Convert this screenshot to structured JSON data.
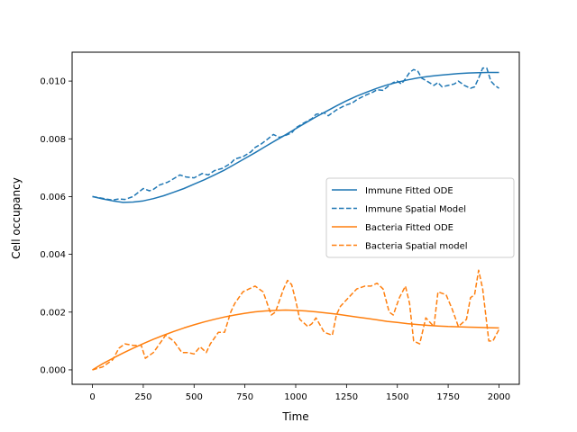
{
  "chart_data": {
    "type": "line",
    "title": "",
    "xlabel": "Time",
    "ylabel": "Cell occupancy",
    "xlim": [
      -100,
      2100
    ],
    "ylim": [
      -0.0005,
      0.011
    ],
    "xticks": [
      0,
      250,
      500,
      750,
      1000,
      1250,
      1500,
      1750,
      2000
    ],
    "xtick_labels": [
      "0",
      "250",
      "500",
      "750",
      "1000",
      "1250",
      "1500",
      "1750",
      "2000"
    ],
    "yticks": [
      0.0,
      0.002,
      0.004,
      0.006,
      0.008,
      0.01
    ],
    "ytick_labels": [
      "0.000",
      "0.002",
      "0.004",
      "0.006",
      "0.008",
      "0.010"
    ],
    "grid": false,
    "legend_position": "center-right",
    "series": [
      {
        "name": "Immune Fitted ODE",
        "color": "#1f77b4",
        "style": "solid",
        "x": [
          0,
          50,
          100,
          150,
          200,
          250,
          300,
          350,
          400,
          450,
          500,
          550,
          600,
          650,
          700,
          750,
          800,
          850,
          900,
          950,
          1000,
          1050,
          1100,
          1150,
          1200,
          1250,
          1300,
          1350,
          1400,
          1450,
          1500,
          1550,
          1600,
          1650,
          1700,
          1750,
          1800,
          1850,
          1900,
          1950,
          2000
        ],
        "y": [
          0.006,
          0.00592,
          0.00585,
          0.0058,
          0.00581,
          0.00585,
          0.00593,
          0.00603,
          0.00615,
          0.00628,
          0.00643,
          0.00658,
          0.00675,
          0.00692,
          0.00712,
          0.00732,
          0.00752,
          0.00773,
          0.00794,
          0.00814,
          0.00835,
          0.00856,
          0.00876,
          0.00895,
          0.00914,
          0.00932,
          0.00948,
          0.00962,
          0.00975,
          0.00987,
          0.00996,
          0.01004,
          0.01011,
          0.01016,
          0.0102,
          0.01023,
          0.01026,
          0.01028,
          0.01029,
          0.0103,
          0.0103
        ]
      },
      {
        "name": "Immune Spatial Model",
        "color": "#1f77b4",
        "style": "dashed",
        "x": [
          0,
          40,
          80,
          100,
          130,
          160,
          200,
          250,
          280,
          300,
          330,
          370,
          400,
          430,
          460,
          500,
          540,
          570,
          600,
          640,
          680,
          700,
          740,
          780,
          800,
          830,
          860,
          890,
          920,
          950,
          980,
          1000,
          1040,
          1080,
          1100,
          1140,
          1160,
          1200,
          1240,
          1280,
          1300,
          1340,
          1380,
          1400,
          1430,
          1460,
          1480,
          1500,
          1520,
          1540,
          1560,
          1580,
          1600,
          1620,
          1650,
          1680,
          1700,
          1720,
          1750,
          1780,
          1800,
          1830,
          1860,
          1880,
          1900,
          1920,
          1940,
          1960,
          1980,
          2000
        ],
        "y": [
          0.006,
          0.00595,
          0.0059,
          0.00588,
          0.00592,
          0.0059,
          0.006,
          0.00628,
          0.0062,
          0.00625,
          0.0064,
          0.0065,
          0.00662,
          0.00675,
          0.00668,
          0.00665,
          0.0068,
          0.00675,
          0.0069,
          0.00698,
          0.00715,
          0.0073,
          0.00738,
          0.00755,
          0.0077,
          0.00782,
          0.00798,
          0.00815,
          0.00805,
          0.00812,
          0.0082,
          0.00838,
          0.00855,
          0.0087,
          0.00885,
          0.0089,
          0.0088,
          0.009,
          0.00915,
          0.00925,
          0.00935,
          0.0095,
          0.00962,
          0.0097,
          0.00968,
          0.00985,
          0.00995,
          0.01,
          0.0099,
          0.01008,
          0.0103,
          0.0104,
          0.01035,
          0.0101,
          0.00998,
          0.00985,
          0.00995,
          0.0098,
          0.00985,
          0.0099,
          0.01,
          0.00985,
          0.00975,
          0.0098,
          0.0101,
          0.01045,
          0.01045,
          0.01,
          0.00985,
          0.00975
        ]
      },
      {
        "name": "Bacteria Fitted ODE",
        "color": "#ff7f0e",
        "style": "solid",
        "x": [
          0,
          50,
          100,
          150,
          200,
          250,
          300,
          350,
          400,
          450,
          500,
          550,
          600,
          650,
          700,
          750,
          800,
          850,
          900,
          950,
          1000,
          1050,
          1100,
          1150,
          1200,
          1250,
          1300,
          1350,
          1400,
          1450,
          1500,
          1550,
          1600,
          1650,
          1700,
          1750,
          1800,
          1850,
          1900,
          1950,
          2000
        ],
        "y": [
          0.0,
          0.00021,
          0.0004,
          0.00058,
          0.00075,
          0.00091,
          0.00106,
          0.0012,
          0.00133,
          0.00145,
          0.00156,
          0.00166,
          0.00175,
          0.00183,
          0.0019,
          0.00196,
          0.00201,
          0.00204,
          0.00206,
          0.00207,
          0.00206,
          0.00204,
          0.00201,
          0.00197,
          0.00193,
          0.00188,
          0.00183,
          0.00178,
          0.00173,
          0.00168,
          0.00164,
          0.0016,
          0.00157,
          0.00154,
          0.00152,
          0.0015,
          0.00149,
          0.00148,
          0.00147,
          0.00146,
          0.00145
        ]
      },
      {
        "name": "Bacteria Spatial model",
        "color": "#ff7f0e",
        "style": "dashed",
        "x": [
          0,
          50,
          100,
          130,
          160,
          200,
          240,
          260,
          300,
          340,
          360,
          400,
          440,
          470,
          500,
          530,
          560,
          580,
          620,
          650,
          680,
          700,
          740,
          770,
          800,
          840,
          860,
          880,
          900,
          940,
          960,
          980,
          1000,
          1020,
          1060,
          1080,
          1100,
          1140,
          1180,
          1200,
          1220,
          1260,
          1300,
          1340,
          1370,
          1400,
          1430,
          1460,
          1480,
          1510,
          1540,
          1560,
          1580,
          1610,
          1640,
          1680,
          1700,
          1740,
          1770,
          1800,
          1840,
          1860,
          1880,
          1900,
          1920,
          1950,
          1970,
          2000
        ],
        "y": [
          0.0,
          0.0001,
          0.00035,
          0.00075,
          0.0009,
          0.00085,
          0.00085,
          0.0004,
          0.0006,
          0.001,
          0.0012,
          0.001,
          0.0006,
          0.0006,
          0.00055,
          0.0008,
          0.0006,
          0.0009,
          0.0013,
          0.0013,
          0.002,
          0.0023,
          0.0027,
          0.0028,
          0.0029,
          0.0027,
          0.0023,
          0.0019,
          0.002,
          0.0028,
          0.0031,
          0.00295,
          0.0024,
          0.00175,
          0.0015,
          0.0016,
          0.0018,
          0.0013,
          0.0012,
          0.0019,
          0.0022,
          0.0025,
          0.0028,
          0.0029,
          0.0029,
          0.003,
          0.0028,
          0.002,
          0.0019,
          0.0025,
          0.0029,
          0.0023,
          0.001,
          0.0009,
          0.0018,
          0.0015,
          0.0027,
          0.0026,
          0.0021,
          0.0015,
          0.00175,
          0.0025,
          0.0026,
          0.00345,
          0.0028,
          0.001,
          0.001,
          0.0014
        ]
      }
    ]
  }
}
